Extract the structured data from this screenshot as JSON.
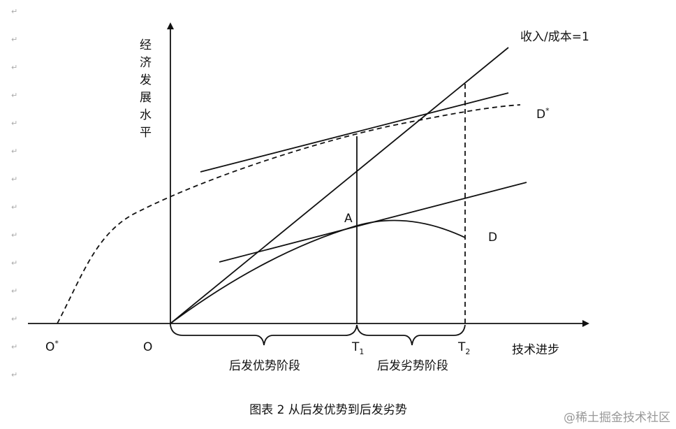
{
  "axis_labels": {
    "y": "经济发展水平",
    "x": "技术进步"
  },
  "curves": {
    "ratio_line": "收入/成本=1",
    "d_star": {
      "text": "D",
      "sup": "*"
    },
    "d": "D"
  },
  "points": {
    "a": "A",
    "o_star": {
      "text": "O",
      "sup": "*"
    },
    "o": "O",
    "t1": {
      "text": "T",
      "sub": "1"
    },
    "t2": {
      "text": "T",
      "sub": "2"
    }
  },
  "stages": [
    "后发优势阶段",
    "后发劣势阶段"
  ],
  "caption": "图表 2 从后发优势到后发劣势",
  "watermark": "@稀土掘金技术社区",
  "paragraph_mark": "↵"
}
